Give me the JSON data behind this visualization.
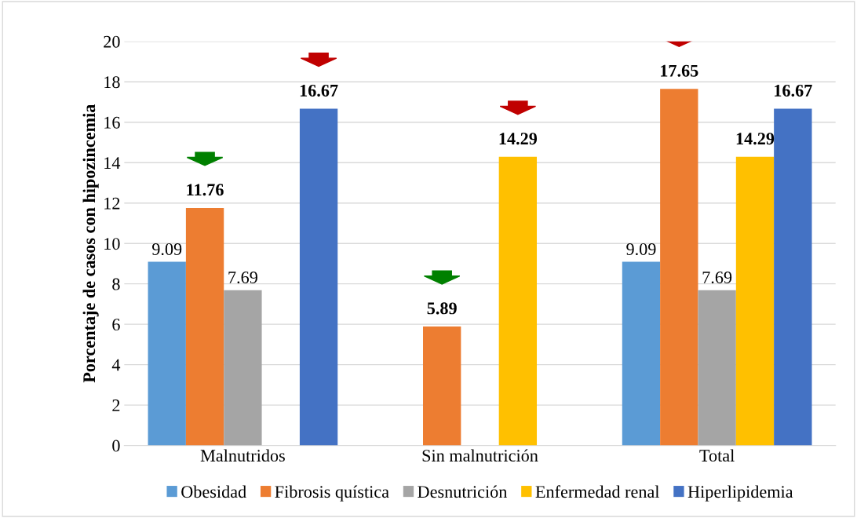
{
  "chart_data": {
    "type": "bar",
    "ylabel": "Porcentaje de casos con hipozincemia",
    "categories": [
      "Malnutridos",
      "Sin malnutrición",
      "Total"
    ],
    "series": [
      {
        "name": "Obesidad",
        "color": "#5b9bd5",
        "values": [
          9.09,
          null,
          9.09
        ],
        "value_labels": [
          "9.09",
          null,
          "9.09"
        ]
      },
      {
        "name": "Fibrosis quística",
        "color": "#ed7d31",
        "values": [
          11.76,
          5.89,
          17.65
        ],
        "value_labels": [
          "11.76",
          "5.89",
          "17.65"
        ]
      },
      {
        "name": "Desnutrición",
        "color": "#a5a5a5",
        "values": [
          7.69,
          null,
          7.69
        ],
        "value_labels": [
          "7.69",
          null,
          "7.69"
        ]
      },
      {
        "name": "Enfermedad renal",
        "color": "#ffc000",
        "values": [
          null,
          14.29,
          14.29
        ],
        "value_labels": [
          null,
          "14.29",
          "14.29"
        ]
      },
      {
        "name": "Hiperlipidemia",
        "color": "#4472c4",
        "values": [
          16.67,
          null,
          16.67
        ],
        "value_labels": [
          "16.67",
          null,
          "16.67"
        ]
      }
    ],
    "ylim": [
      0,
      20
    ],
    "yticks": [
      0,
      2,
      4,
      6,
      8,
      10,
      12,
      14,
      16,
      18,
      20
    ],
    "grid": "y",
    "legend": "bottom"
  }
}
